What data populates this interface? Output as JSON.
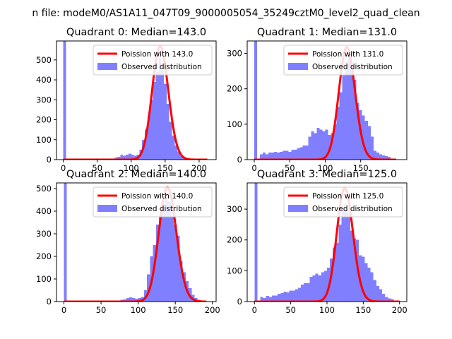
{
  "figure": {
    "suptitle": "n file: modeM0/AS1A11_047T09_9000005054_35249cztM0_level2_quad_clean"
  },
  "colors": {
    "hist_fill": "#7f7fff",
    "poisson_line": "#ff0000",
    "axes": "#000000",
    "background": "#ffffff"
  },
  "chart_data": [
    {
      "type": "bar",
      "title": "Quadrant 0: Median=143.0",
      "legend": {
        "position": "top-right",
        "line_label": "Poission with 143.0",
        "hist_label": "Observed distribution"
      },
      "xlim": [
        -10,
        225
      ],
      "ylim": [
        0,
        595
      ],
      "xticks": [
        0,
        50,
        100,
        150,
        200
      ],
      "yticks": [
        0,
        100,
        200,
        300,
        400,
        500
      ],
      "bin_width": 4,
      "bins": [
        [
          0,
          595
        ],
        [
          72,
          5
        ],
        [
          76,
          10
        ],
        [
          80,
          15
        ],
        [
          84,
          25
        ],
        [
          88,
          20
        ],
        [
          92,
          25
        ],
        [
          96,
          30
        ],
        [
          100,
          25
        ],
        [
          104,
          20
        ],
        [
          108,
          25
        ],
        [
          112,
          50
        ],
        [
          116,
          100
        ],
        [
          120,
          150
        ],
        [
          124,
          220
        ],
        [
          128,
          300
        ],
        [
          132,
          390
        ],
        [
          136,
          440
        ],
        [
          140,
          510
        ],
        [
          144,
          450
        ],
        [
          148,
          380
        ],
        [
          152,
          280
        ],
        [
          156,
          190
        ],
        [
          160,
          120
        ],
        [
          164,
          70
        ],
        [
          168,
          40
        ],
        [
          172,
          20
        ],
        [
          176,
          10
        ],
        [
          180,
          5
        ]
      ],
      "poisson": {
        "mean": 143,
        "xrange": [
          0,
          212
        ],
        "peak": 570,
        "sigma": 12
      }
    },
    {
      "type": "bar",
      "title": "Quadrant 1: Median=131.0",
      "legend": {
        "position": "top-right",
        "line_label": "Poission with 131.0",
        "hist_label": "Observed distribution"
      },
      "xlim": [
        -10,
        215
      ],
      "ylim": [
        0,
        335
      ],
      "xticks": [
        0,
        50,
        100,
        150
      ],
      "yticks": [
        0,
        100,
        200,
        300
      ],
      "bin_width": 4,
      "bins": [
        [
          0,
          335
        ],
        [
          8,
          15
        ],
        [
          12,
          20
        ],
        [
          16,
          15
        ],
        [
          20,
          20
        ],
        [
          24,
          20
        ],
        [
          28,
          22
        ],
        [
          32,
          20
        ],
        [
          36,
          22
        ],
        [
          40,
          25
        ],
        [
          44,
          25
        ],
        [
          48,
          22
        ],
        [
          52,
          28
        ],
        [
          56,
          28
        ],
        [
          60,
          32
        ],
        [
          64,
          35
        ],
        [
          68,
          40
        ],
        [
          72,
          40
        ],
        [
          76,
          65
        ],
        [
          80,
          80
        ],
        [
          84,
          75
        ],
        [
          88,
          90
        ],
        [
          92,
          85
        ],
        [
          96,
          80
        ],
        [
          100,
          85
        ],
        [
          104,
          70
        ],
        [
          108,
          75
        ],
        [
          112,
          100
        ],
        [
          116,
          150
        ],
        [
          120,
          190
        ],
        [
          124,
          240
        ],
        [
          128,
          275
        ],
        [
          132,
          300
        ],
        [
          136,
          250
        ],
        [
          140,
          225
        ],
        [
          144,
          160
        ],
        [
          148,
          140
        ],
        [
          152,
          125
        ],
        [
          156,
          110
        ],
        [
          160,
          95
        ],
        [
          164,
          65
        ],
        [
          168,
          25
        ],
        [
          172,
          20
        ],
        [
          176,
          15
        ],
        [
          180,
          12
        ],
        [
          184,
          10
        ],
        [
          188,
          8
        ]
      ],
      "poisson": {
        "mean": 131,
        "xrange": [
          0,
          200
        ],
        "peak": 318,
        "sigma": 11.5
      }
    },
    {
      "type": "bar",
      "title": "Quadrant 2: Median=140.0",
      "legend": {
        "position": "top-right",
        "line_label": "Poission with 140.0",
        "hist_label": "Observed distribution"
      },
      "xlim": [
        -10,
        205
      ],
      "ylim": [
        0,
        525
      ],
      "xticks": [
        0,
        50,
        100,
        150,
        200
      ],
      "yticks": [
        0,
        100,
        200,
        300,
        400,
        500
      ],
      "bin_width": 4,
      "bins": [
        [
          0,
          525
        ],
        [
          72,
          5
        ],
        [
          76,
          8
        ],
        [
          80,
          10
        ],
        [
          84,
          15
        ],
        [
          88,
          18
        ],
        [
          92,
          15
        ],
        [
          96,
          12
        ],
        [
          100,
          15
        ],
        [
          104,
          20
        ],
        [
          108,
          50
        ],
        [
          112,
          120
        ],
        [
          116,
          200
        ],
        [
          120,
          250
        ],
        [
          124,
          340
        ],
        [
          128,
          380
        ],
        [
          132,
          420
        ],
        [
          136,
          460
        ],
        [
          140,
          440
        ],
        [
          144,
          380
        ],
        [
          148,
          340
        ],
        [
          152,
          290
        ],
        [
          156,
          180
        ],
        [
          160,
          130
        ],
        [
          164,
          90
        ],
        [
          168,
          60
        ],
        [
          172,
          30
        ],
        [
          176,
          15
        ],
        [
          180,
          8
        ]
      ],
      "poisson": {
        "mean": 140,
        "xrange": [
          0,
          192
        ],
        "peak": 505,
        "sigma": 11.8
      }
    },
    {
      "type": "bar",
      "title": "Quadrant 3: Median=125.0",
      "legend": {
        "position": "top-right",
        "line_label": "Poission with 125.0",
        "hist_label": "Observed distribution"
      },
      "xlim": [
        -10,
        210
      ],
      "ylim": [
        0,
        385
      ],
      "xticks": [
        0,
        50,
        100,
        150,
        200
      ],
      "yticks": [
        0,
        100,
        200,
        300
      ],
      "bin_width": 4,
      "bins": [
        [
          0,
          385
        ],
        [
          8,
          15
        ],
        [
          12,
          12
        ],
        [
          16,
          18
        ],
        [
          20,
          15
        ],
        [
          24,
          20
        ],
        [
          28,
          20
        ],
        [
          32,
          25
        ],
        [
          36,
          28
        ],
        [
          40,
          32
        ],
        [
          44,
          30
        ],
        [
          48,
          35
        ],
        [
          52,
          35
        ],
        [
          56,
          40
        ],
        [
          60,
          45
        ],
        [
          64,
          55
        ],
        [
          68,
          60
        ],
        [
          72,
          60
        ],
        [
          76,
          80
        ],
        [
          80,
          85
        ],
        [
          84,
          90
        ],
        [
          88,
          85
        ],
        [
          92,
          95
        ],
        [
          96,
          100
        ],
        [
          100,
          110
        ],
        [
          104,
          140
        ],
        [
          108,
          175
        ],
        [
          112,
          190
        ],
        [
          116,
          250
        ],
        [
          120,
          300
        ],
        [
          124,
          315
        ],
        [
          128,
          285
        ],
        [
          132,
          230
        ],
        [
          136,
          205
        ],
        [
          140,
          200
        ],
        [
          144,
          150
        ],
        [
          148,
          145
        ],
        [
          152,
          125
        ],
        [
          156,
          110
        ],
        [
          160,
          95
        ],
        [
          164,
          70
        ],
        [
          168,
          50
        ],
        [
          172,
          40
        ],
        [
          176,
          25
        ],
        [
          180,
          15
        ],
        [
          184,
          10
        ],
        [
          188,
          8
        ]
      ],
      "poisson": {
        "mean": 125,
        "xrange": [
          0,
          200
        ],
        "peak": 368,
        "sigma": 11.2
      }
    }
  ]
}
